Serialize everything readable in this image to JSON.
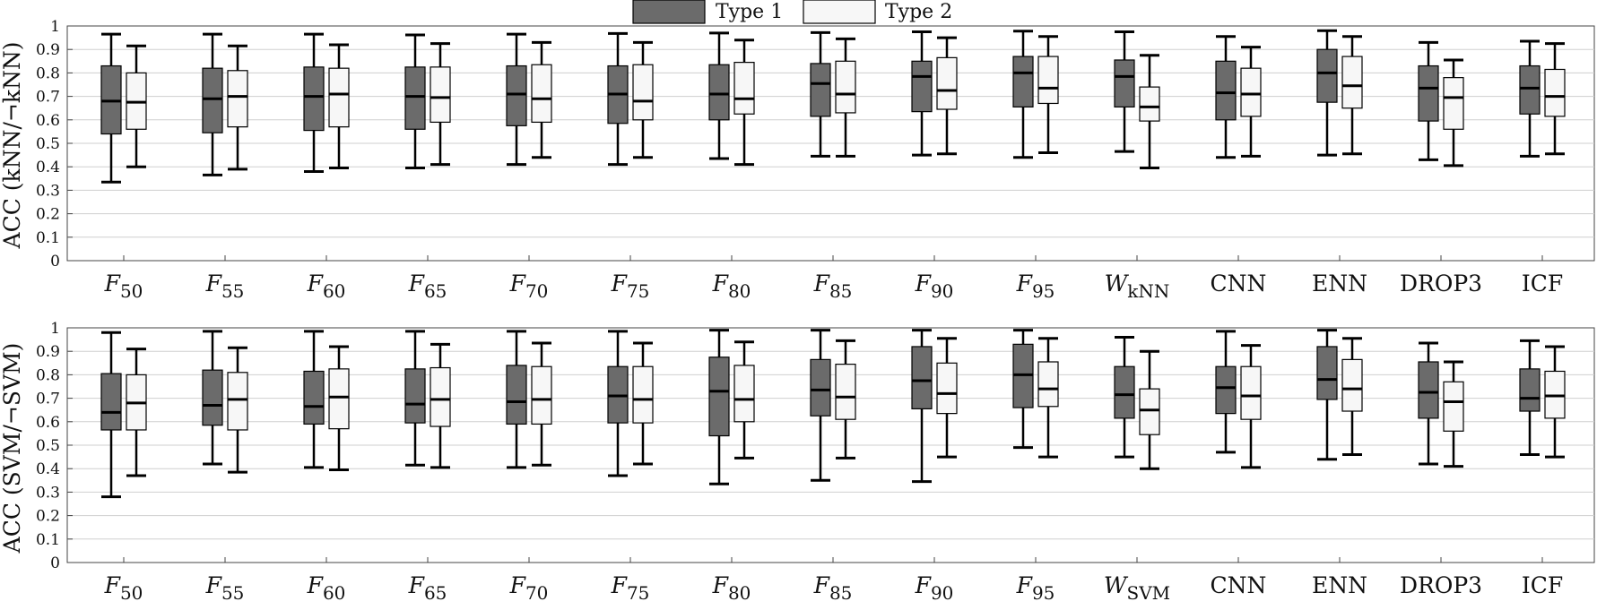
{
  "legend": {
    "type1": "Type 1",
    "type2": "Type 2"
  },
  "colors": {
    "type1": "#6b6b6b",
    "type2": "#f7f7f7",
    "grid": "#cfcfcf",
    "whisker": "#000000"
  },
  "chart_data": [
    {
      "type": "boxplot",
      "ylabel": "ACC (kNN/¬kNN)",
      "ylim": [
        0,
        1
      ],
      "yticks": [
        "0",
        "0.1",
        "0.2",
        "0.3",
        "0.4",
        "0.5",
        "0.6",
        "0.7",
        "0.8",
        "0.9",
        "1"
      ],
      "grid": "horizontal",
      "legend_position": "top-center",
      "categories": [
        {
          "main": "F",
          "sub": "50"
        },
        {
          "main": "F",
          "sub": "55"
        },
        {
          "main": "F",
          "sub": "60"
        },
        {
          "main": "F",
          "sub": "65"
        },
        {
          "main": "F",
          "sub": "70"
        },
        {
          "main": "F",
          "sub": "75"
        },
        {
          "main": "F",
          "sub": "80"
        },
        {
          "main": "F",
          "sub": "85"
        },
        {
          "main": "F",
          "sub": "90"
        },
        {
          "main": "F",
          "sub": "95"
        },
        {
          "main": "W",
          "sub": "kNN"
        },
        {
          "main": "CNN",
          "sub": ""
        },
        {
          "main": "ENN",
          "sub": ""
        },
        {
          "main": "DROP3",
          "sub": ""
        },
        {
          "main": "ICF",
          "sub": ""
        }
      ],
      "series": [
        {
          "name": "Type 1",
          "boxes": [
            {
              "min": 0.335,
              "q1": 0.54,
              "median": 0.68,
              "q3": 0.83,
              "max": 0.965
            },
            {
              "min": 0.365,
              "q1": 0.545,
              "median": 0.69,
              "q3": 0.82,
              "max": 0.965
            },
            {
              "min": 0.38,
              "q1": 0.555,
              "median": 0.7,
              "q3": 0.825,
              "max": 0.965
            },
            {
              "min": 0.395,
              "q1": 0.56,
              "median": 0.7,
              "q3": 0.825,
              "max": 0.962
            },
            {
              "min": 0.41,
              "q1": 0.575,
              "median": 0.71,
              "q3": 0.83,
              "max": 0.965
            },
            {
              "min": 0.41,
              "q1": 0.585,
              "median": 0.71,
              "q3": 0.83,
              "max": 0.968
            },
            {
              "min": 0.435,
              "q1": 0.6,
              "median": 0.71,
              "q3": 0.835,
              "max": 0.97
            },
            {
              "min": 0.445,
              "q1": 0.615,
              "median": 0.755,
              "q3": 0.84,
              "max": 0.972
            },
            {
              "min": 0.45,
              "q1": 0.635,
              "median": 0.785,
              "q3": 0.85,
              "max": 0.975
            },
            {
              "min": 0.44,
              "q1": 0.655,
              "median": 0.8,
              "q3": 0.87,
              "max": 0.978
            },
            {
              "min": 0.465,
              "q1": 0.655,
              "median": 0.785,
              "q3": 0.855,
              "max": 0.975
            },
            {
              "min": 0.44,
              "q1": 0.6,
              "median": 0.715,
              "q3": 0.85,
              "max": 0.955
            },
            {
              "min": 0.45,
              "q1": 0.675,
              "median": 0.8,
              "q3": 0.9,
              "max": 0.98
            },
            {
              "min": 0.43,
              "q1": 0.595,
              "median": 0.735,
              "q3": 0.83,
              "max": 0.93
            },
            {
              "min": 0.445,
              "q1": 0.625,
              "median": 0.735,
              "q3": 0.83,
              "max": 0.935
            }
          ]
        },
        {
          "name": "Type 2",
          "boxes": [
            {
              "min": 0.4,
              "q1": 0.56,
              "median": 0.675,
              "q3": 0.8,
              "max": 0.915
            },
            {
              "min": 0.39,
              "q1": 0.57,
              "median": 0.7,
              "q3": 0.81,
              "max": 0.915
            },
            {
              "min": 0.395,
              "q1": 0.57,
              "median": 0.71,
              "q3": 0.82,
              "max": 0.92
            },
            {
              "min": 0.41,
              "q1": 0.59,
              "median": 0.695,
              "q3": 0.825,
              "max": 0.925
            },
            {
              "min": 0.44,
              "q1": 0.59,
              "median": 0.69,
              "q3": 0.835,
              "max": 0.93
            },
            {
              "min": 0.44,
              "q1": 0.6,
              "median": 0.68,
              "q3": 0.835,
              "max": 0.93
            },
            {
              "min": 0.41,
              "q1": 0.625,
              "median": 0.69,
              "q3": 0.845,
              "max": 0.94
            },
            {
              "min": 0.445,
              "q1": 0.63,
              "median": 0.71,
              "q3": 0.85,
              "max": 0.945
            },
            {
              "min": 0.455,
              "q1": 0.645,
              "median": 0.725,
              "q3": 0.865,
              "max": 0.95
            },
            {
              "min": 0.46,
              "q1": 0.67,
              "median": 0.735,
              "q3": 0.87,
              "max": 0.955
            },
            {
              "min": 0.395,
              "q1": 0.595,
              "median": 0.655,
              "q3": 0.74,
              "max": 0.875
            },
            {
              "min": 0.445,
              "q1": 0.615,
              "median": 0.71,
              "q3": 0.82,
              "max": 0.91
            },
            {
              "min": 0.455,
              "q1": 0.65,
              "median": 0.745,
              "q3": 0.87,
              "max": 0.955
            },
            {
              "min": 0.405,
              "q1": 0.56,
              "median": 0.695,
              "q3": 0.78,
              "max": 0.855
            },
            {
              "min": 0.455,
              "q1": 0.615,
              "median": 0.7,
              "q3": 0.815,
              "max": 0.925
            }
          ]
        }
      ]
    },
    {
      "type": "boxplot",
      "ylabel": "ACC (SVM/¬SVM)",
      "ylim": [
        0,
        1
      ],
      "yticks": [
        "0",
        "0.1",
        "0.2",
        "0.3",
        "0.4",
        "0.5",
        "0.6",
        "0.7",
        "0.8",
        "0.9",
        "1"
      ],
      "grid": "horizontal",
      "categories": [
        {
          "main": "F",
          "sub": "50"
        },
        {
          "main": "F",
          "sub": "55"
        },
        {
          "main": "F",
          "sub": "60"
        },
        {
          "main": "F",
          "sub": "65"
        },
        {
          "main": "F",
          "sub": "70"
        },
        {
          "main": "F",
          "sub": "75"
        },
        {
          "main": "F",
          "sub": "80"
        },
        {
          "main": "F",
          "sub": "85"
        },
        {
          "main": "F",
          "sub": "90"
        },
        {
          "main": "F",
          "sub": "95"
        },
        {
          "main": "W",
          "sub": "SVM"
        },
        {
          "main": "CNN",
          "sub": ""
        },
        {
          "main": "ENN",
          "sub": ""
        },
        {
          "main": "DROP3",
          "sub": ""
        },
        {
          "main": "ICF",
          "sub": ""
        }
      ],
      "series": [
        {
          "name": "Type 1",
          "boxes": [
            {
              "min": 0.28,
              "q1": 0.565,
              "median": 0.64,
              "q3": 0.805,
              "max": 0.98
            },
            {
              "min": 0.42,
              "q1": 0.585,
              "median": 0.67,
              "q3": 0.82,
              "max": 0.985
            },
            {
              "min": 0.405,
              "q1": 0.59,
              "median": 0.665,
              "q3": 0.815,
              "max": 0.985
            },
            {
              "min": 0.415,
              "q1": 0.595,
              "median": 0.675,
              "q3": 0.825,
              "max": 0.985
            },
            {
              "min": 0.405,
              "q1": 0.59,
              "median": 0.685,
              "q3": 0.84,
              "max": 0.985
            },
            {
              "min": 0.37,
              "q1": 0.595,
              "median": 0.71,
              "q3": 0.835,
              "max": 0.985
            },
            {
              "min": 0.335,
              "q1": 0.54,
              "median": 0.73,
              "q3": 0.875,
              "max": 0.99
            },
            {
              "min": 0.35,
              "q1": 0.625,
              "median": 0.735,
              "q3": 0.865,
              "max": 0.99
            },
            {
              "min": 0.345,
              "q1": 0.655,
              "median": 0.775,
              "q3": 0.92,
              "max": 0.99
            },
            {
              "min": 0.49,
              "q1": 0.66,
              "median": 0.8,
              "q3": 0.93,
              "max": 0.99
            },
            {
              "min": 0.45,
              "q1": 0.615,
              "median": 0.715,
              "q3": 0.835,
              "max": 0.96
            },
            {
              "min": 0.47,
              "q1": 0.635,
              "median": 0.745,
              "q3": 0.835,
              "max": 0.985
            },
            {
              "min": 0.44,
              "q1": 0.695,
              "median": 0.78,
              "q3": 0.92,
              "max": 0.99
            },
            {
              "min": 0.42,
              "q1": 0.615,
              "median": 0.725,
              "q3": 0.855,
              "max": 0.935
            },
            {
              "min": 0.46,
              "q1": 0.645,
              "median": 0.7,
              "q3": 0.825,
              "max": 0.945
            }
          ]
        },
        {
          "name": "Type 2",
          "boxes": [
            {
              "min": 0.37,
              "q1": 0.565,
              "median": 0.68,
              "q3": 0.8,
              "max": 0.91
            },
            {
              "min": 0.385,
              "q1": 0.565,
              "median": 0.695,
              "q3": 0.81,
              "max": 0.915
            },
            {
              "min": 0.395,
              "q1": 0.57,
              "median": 0.705,
              "q3": 0.825,
              "max": 0.92
            },
            {
              "min": 0.405,
              "q1": 0.58,
              "median": 0.695,
              "q3": 0.83,
              "max": 0.93
            },
            {
              "min": 0.415,
              "q1": 0.59,
              "median": 0.695,
              "q3": 0.835,
              "max": 0.935
            },
            {
              "min": 0.42,
              "q1": 0.595,
              "median": 0.695,
              "q3": 0.835,
              "max": 0.935
            },
            {
              "min": 0.445,
              "q1": 0.6,
              "median": 0.695,
              "q3": 0.84,
              "max": 0.94
            },
            {
              "min": 0.445,
              "q1": 0.61,
              "median": 0.705,
              "q3": 0.845,
              "max": 0.945
            },
            {
              "min": 0.45,
              "q1": 0.635,
              "median": 0.72,
              "q3": 0.85,
              "max": 0.955
            },
            {
              "min": 0.45,
              "q1": 0.665,
              "median": 0.74,
              "q3": 0.855,
              "max": 0.955
            },
            {
              "min": 0.4,
              "q1": 0.545,
              "median": 0.65,
              "q3": 0.74,
              "max": 0.9
            },
            {
              "min": 0.405,
              "q1": 0.61,
              "median": 0.71,
              "q3": 0.835,
              "max": 0.925
            },
            {
              "min": 0.46,
              "q1": 0.645,
              "median": 0.74,
              "q3": 0.865,
              "max": 0.955
            },
            {
              "min": 0.41,
              "q1": 0.56,
              "median": 0.685,
              "q3": 0.77,
              "max": 0.855
            },
            {
              "min": 0.45,
              "q1": 0.615,
              "median": 0.71,
              "q3": 0.815,
              "max": 0.92
            }
          ]
        }
      ]
    }
  ]
}
